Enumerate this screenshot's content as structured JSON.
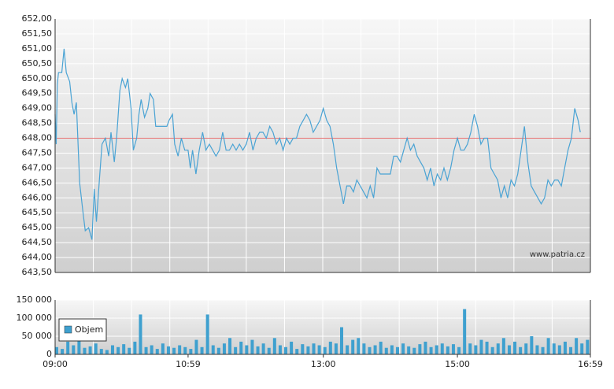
{
  "chart_data": [
    {
      "type": "line",
      "color": "#4aa3d4",
      "x": [
        "09:00",
        "09:01",
        "09:02",
        "09:03",
        "09:06",
        "09:08",
        "09:10",
        "09:13",
        "09:15",
        "09:17",
        "09:19",
        "09:22",
        "09:25",
        "09:27",
        "09:30",
        "09:33",
        "09:35",
        "09:37",
        "09:40",
        "09:42",
        "09:45",
        "09:48",
        "09:50",
        "09:53",
        "09:55",
        "09:58",
        "10:00",
        "10:03",
        "10:05",
        "10:08",
        "10:10",
        "10:13",
        "10:15",
        "10:17",
        "10:20",
        "10:23",
        "10:25",
        "10:28",
        "10:30",
        "10:35",
        "10:40",
        "10:42",
        "10:45",
        "10:47",
        "10:50",
        "10:53",
        "10:56",
        "10:59",
        "11:01",
        "11:03",
        "11:06",
        "11:09",
        "11:12",
        "11:15",
        "11:18",
        "11:21",
        "11:24",
        "11:27",
        "11:30",
        "11:33",
        "11:36",
        "11:39",
        "11:42",
        "11:45",
        "11:48",
        "11:51",
        "11:54",
        "11:57",
        "12:00",
        "12:03",
        "12:06",
        "12:09",
        "12:12",
        "12:15",
        "12:18",
        "12:21",
        "12:24",
        "12:27",
        "12:30",
        "12:33",
        "12:36",
        "12:39",
        "12:42",
        "12:45",
        "12:48",
        "12:51",
        "12:54",
        "12:57",
        "13:00",
        "13:03",
        "13:06",
        "13:09",
        "13:12",
        "13:15",
        "13:18",
        "13:21",
        "13:24",
        "13:27",
        "13:30",
        "13:33",
        "13:36",
        "13:39",
        "13:42",
        "13:45",
        "13:48",
        "13:51",
        "13:54",
        "13:57",
        "14:00",
        "14:03",
        "14:06",
        "14:09",
        "14:12",
        "14:15",
        "14:18",
        "14:21",
        "14:24",
        "14:27",
        "14:30",
        "14:33",
        "14:36",
        "14:39",
        "14:42",
        "14:45",
        "14:48",
        "14:51",
        "14:54",
        "14:57",
        "15:00",
        "15:03",
        "15:06",
        "15:09",
        "15:12",
        "15:15",
        "15:18",
        "15:21",
        "15:24",
        "15:27",
        "15:30",
        "15:33",
        "15:36",
        "15:39",
        "15:42",
        "15:45",
        "15:48",
        "15:51",
        "15:54",
        "15:57",
        "16:00",
        "16:03",
        "16:06",
        "16:09",
        "16:12",
        "16:15",
        "16:18",
        "16:21",
        "16:24",
        "16:27",
        "16:30",
        "16:33",
        "16:36",
        "16:39",
        "16:42",
        "16:45",
        "16:48",
        "16:50"
      ],
      "values": [
        648.8,
        647.8,
        649.8,
        650.2,
        650.2,
        651.0,
        650.2,
        649.9,
        649.2,
        648.8,
        649.2,
        646.5,
        645.5,
        644.9,
        645.0,
        644.6,
        646.3,
        645.2,
        646.8,
        647.8,
        648.0,
        647.4,
        648.2,
        647.2,
        648.0,
        649.6,
        650.0,
        649.7,
        650.0,
        649.0,
        647.6,
        648.0,
        648.8,
        649.3,
        648.7,
        649.0,
        649.5,
        649.3,
        648.4,
        648.4,
        648.4,
        648.6,
        648.8,
        647.8,
        647.4,
        648.0,
        647.6,
        647.6,
        647.0,
        647.6,
        646.8,
        647.6,
        648.2,
        647.6,
        647.8,
        647.6,
        647.4,
        647.6,
        648.2,
        647.6,
        647.6,
        647.8,
        647.6,
        647.8,
        647.6,
        647.8,
        648.2,
        647.6,
        648.0,
        648.2,
        648.2,
        648.0,
        648.4,
        648.2,
        647.8,
        648.0,
        647.6,
        648.0,
        647.8,
        648.0,
        648.0,
        648.4,
        648.6,
        648.8,
        648.6,
        648.2,
        648.4,
        648.6,
        649.0,
        648.6,
        648.4,
        647.8,
        647.0,
        646.4,
        645.8,
        646.4,
        646.4,
        646.2,
        646.6,
        646.4,
        646.2,
        646.0,
        646.4,
        646.0,
        647.0,
        646.8,
        646.8,
        646.8,
        646.8,
        647.4,
        647.4,
        647.2,
        647.6,
        648.0,
        647.6,
        647.8,
        647.4,
        647.2,
        647.0,
        646.6,
        647.0,
        646.4,
        646.8,
        646.6,
        647.0,
        646.6,
        647.0,
        647.6,
        648.0,
        647.6,
        647.6,
        647.8,
        648.2,
        648.8,
        648.4,
        647.8,
        648.0,
        648.0,
        647.0,
        646.8,
        646.6,
        646.0,
        646.4,
        646.0,
        646.6,
        646.4,
        646.8,
        647.6,
        648.4,
        647.2,
        646.4,
        646.2,
        646.0,
        645.8,
        646.0,
        646.6,
        646.4,
        646.6,
        646.6,
        646.4,
        647.0,
        647.6,
        648.0,
        649.0,
        648.6,
        648.2
      ],
      "xlim": [
        "09:00",
        "16:59"
      ],
      "ylim": [
        643.5,
        652
      ],
      "yticks": [
        {
          "value": 643.5,
          "label": "643,50"
        },
        {
          "value": 644,
          "label": "644,00"
        },
        {
          "value": 644.5,
          "label": "644,50"
        },
        {
          "value": 645,
          "label": "645,00"
        },
        {
          "value": 645.5,
          "label": "645,50"
        },
        {
          "value": 646,
          "label": "646,00"
        },
        {
          "value": 646.5,
          "label": "646,50"
        },
        {
          "value": 647,
          "label": "647,00"
        },
        {
          "value": 647.5,
          "label": "647,50"
        },
        {
          "value": 648,
          "label": "648,00"
        },
        {
          "value": 648.5,
          "label": "648,50"
        },
        {
          "value": 649,
          "label": "649,00"
        },
        {
          "value": 649.5,
          "label": "649,50"
        },
        {
          "value": 650,
          "label": "650,00"
        },
        {
          "value": 650.5,
          "label": "650,50"
        },
        {
          "value": 651,
          "label": "651,00"
        },
        {
          "value": 651.5,
          "label": "651,50"
        },
        {
          "value": 652,
          "label": "652,00"
        }
      ],
      "reference_line": {
        "value": 648,
        "color": "#e87070"
      },
      "annotation": "www.patria.cz",
      "grid": true
    },
    {
      "type": "bar",
      "x": [
        "09:00",
        "09:05",
        "09:10",
        "09:15",
        "09:20",
        "09:25",
        "09:30",
        "09:35",
        "09:40",
        "09:45",
        "09:50",
        "09:55",
        "10:00",
        "10:05",
        "10:10",
        "10:15",
        "10:20",
        "10:25",
        "10:30",
        "10:35",
        "10:40",
        "10:45",
        "10:50",
        "10:55",
        "11:00",
        "11:05",
        "11:10",
        "11:15",
        "11:20",
        "11:25",
        "11:30",
        "11:35",
        "11:40",
        "11:45",
        "11:50",
        "11:55",
        "12:00",
        "12:05",
        "12:10",
        "12:15",
        "12:20",
        "12:25",
        "12:30",
        "12:35",
        "12:40",
        "12:45",
        "12:50",
        "12:55",
        "13:00",
        "13:05",
        "13:10",
        "13:15",
        "13:20",
        "13:25",
        "13:30",
        "13:35",
        "13:40",
        "13:45",
        "13:50",
        "13:55",
        "14:00",
        "14:05",
        "14:10",
        "14:15",
        "14:20",
        "14:25",
        "14:30",
        "14:35",
        "14:40",
        "14:45",
        "14:50",
        "14:55",
        "15:00",
        "15:05",
        "15:10",
        "15:15",
        "15:20",
        "15:25",
        "15:30",
        "15:35",
        "15:40",
        "15:45",
        "15:50",
        "15:55",
        "16:00",
        "16:05",
        "16:10",
        "16:15",
        "16:20",
        "16:25",
        "16:30",
        "16:35",
        "16:40",
        "16:45",
        "16:50",
        "16:55"
      ],
      "series": [
        {
          "name": "Objem",
          "color": "#3ea0cf",
          "values": [
            20000,
            15000,
            35000,
            25000,
            45000,
            18000,
            22000,
            30000,
            15000,
            12000,
            25000,
            20000,
            28000,
            18000,
            35000,
            110000,
            20000,
            25000,
            15000,
            30000,
            22000,
            18000,
            25000,
            20000,
            15000,
            40000,
            20000,
            110000,
            25000,
            18000,
            30000,
            45000,
            20000,
            35000,
            25000,
            40000,
            22000,
            30000,
            18000,
            45000,
            25000,
            20000,
            35000,
            15000,
            28000,
            22000,
            30000,
            25000,
            20000,
            35000,
            30000,
            75000,
            25000,
            40000,
            45000,
            30000,
            20000,
            25000,
            35000,
            18000,
            25000,
            20000,
            30000,
            22000,
            18000,
            28000,
            35000,
            20000,
            25000,
            30000,
            22000,
            28000,
            20000,
            125000,
            30000,
            25000,
            40000,
            35000,
            20000,
            30000,
            45000,
            25000,
            35000,
            20000,
            30000,
            50000,
            25000,
            20000,
            45000,
            30000,
            25000,
            35000,
            20000,
            45000,
            30000,
            40000
          ]
        }
      ],
      "xlim": [
        "09:00",
        "16:59"
      ],
      "xticks": [
        "09:00",
        "10:59",
        "13:00",
        "15:00",
        "16:59"
      ],
      "ylim": [
        0,
        150000
      ],
      "yticks": [
        0,
        {
          "value": 50000,
          "label": "50 000"
        },
        {
          "value": 100000,
          "label": "100 000"
        },
        {
          "value": 150000,
          "label": "150 000"
        }
      ],
      "grid": true
    }
  ]
}
